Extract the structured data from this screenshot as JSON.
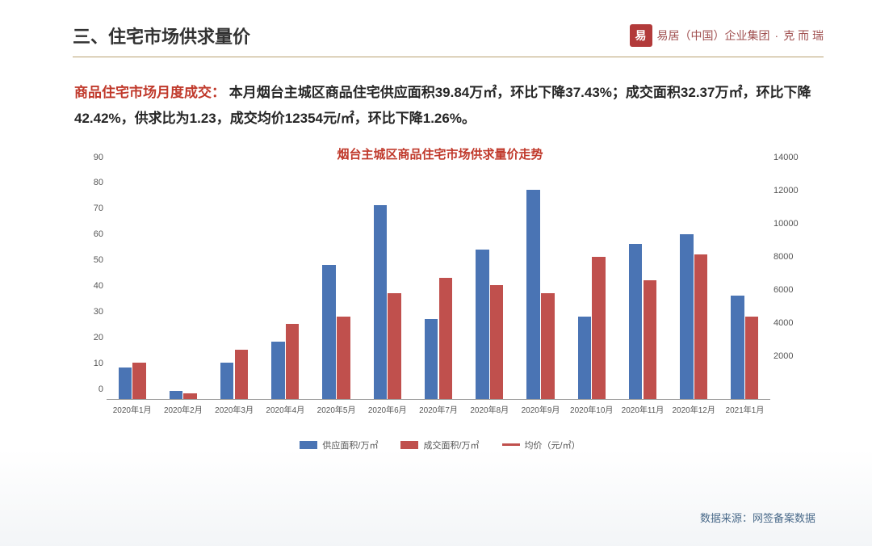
{
  "header": {
    "title": "三、住宅市场供求量价",
    "brand_text1": "易居（中国）企业集团",
    "brand_sep": "·",
    "brand_text2": "克 而 瑞",
    "brand_mark": "易"
  },
  "desc": {
    "lead": "商品住宅市场月度成交：",
    "body": " 本月烟台主城区商品住宅供应面积39.84万㎡，环比下降37.43%；成交面积32.37万㎡，环比下降42.42%，供求比为1.23，成交均价12354元/㎡，环比下降1.26%。"
  },
  "chart": {
    "title": "烟台主城区商品住宅市场供求量价走势",
    "type": "grouped-bar",
    "categories": [
      "2020年1月",
      "2020年2月",
      "2020年3月",
      "2020年4月",
      "2020年5月",
      "2020年6月",
      "2020年7月",
      "2020年8月",
      "2020年9月",
      "2020年10月",
      "2020年11月",
      "2020年12月",
      "2021年1月"
    ],
    "series": [
      {
        "name": "供应面积/万㎡",
        "color": "#4a74b4",
        "values": [
          12,
          3,
          14,
          22,
          52,
          75,
          31,
          58,
          81,
          32,
          60,
          64,
          40
        ]
      },
      {
        "name": "成交面积/万㎡",
        "color": "#c0504d",
        "values": [
          14,
          2,
          19,
          29,
          32,
          41,
          47,
          44,
          41,
          55,
          46,
          56,
          32
        ]
      },
      {
        "name": "均价（元/㎡）",
        "color": "#c0504d",
        "type": "line",
        "axis": "right"
      }
    ],
    "y_left": {
      "min": 0,
      "max": 90,
      "step": 10
    },
    "y_right": {
      "min": 0,
      "max": 14000,
      "step": 2000
    },
    "bar_width_pct": 26,
    "axis_fontsize": 11,
    "title_fontsize": 15,
    "background_color": "#ffffff"
  },
  "legend": {
    "items": [
      {
        "label": "供应面积/万㎡",
        "color": "#4a74b4",
        "kind": "bar"
      },
      {
        "label": "成交面积/万㎡",
        "color": "#c0504d",
        "kind": "bar"
      },
      {
        "label": "均价（元/㎡）",
        "color": "#c0504d",
        "kind": "line"
      }
    ]
  },
  "source": "数据来源：网签备案数据"
}
